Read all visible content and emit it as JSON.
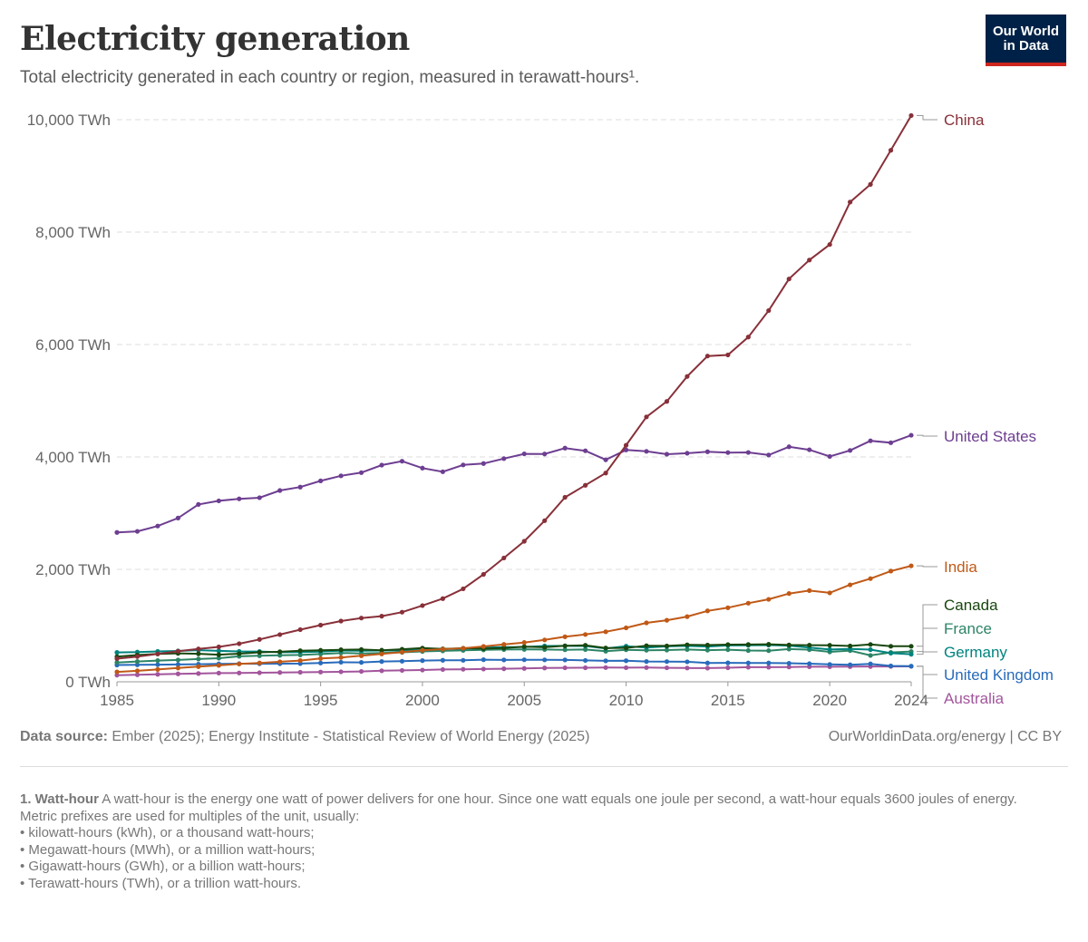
{
  "header": {
    "title": "Electricity generation",
    "subtitle": "Total electricity generated in each country or region, measured in terawatt-hours¹.",
    "logo_line1": "Our World",
    "logo_line2": "in Data"
  },
  "footer": {
    "source_label": "Data source:",
    "source_text": " Ember (2025); Energy Institute - Statistical Review of World Energy (2025)",
    "link_text": "OurWorldinData.org/energy | CC BY"
  },
  "footnote": {
    "term": "1. Watt-hour",
    "definition": " A watt-hour is the energy one watt of power delivers for one hour. Since one watt equals one joule per second, a watt-hour equals 3600 joules of energy.",
    "prefix_intro": "Metric prefixes are used for multiples of the unit, usually:",
    "bullets": [
      "• kilowatt-hours (kWh), or a thousand watt-hours;",
      "• Megawatt-hours (MWh), or a million watt-hours;",
      "• Gigawatt-hours (GWh), or a billion watt-hours;",
      "• Terawatt-hours (TWh), or a trillion watt-hours."
    ]
  },
  "chart_data": {
    "type": "line",
    "title": "Electricity generation",
    "ylabel": "TWh",
    "ylim": [
      0,
      10000
    ],
    "xlim": [
      1985,
      2024
    ],
    "y_ticks": [
      0,
      2000,
      4000,
      6000,
      8000,
      10000
    ],
    "y_tick_labels": [
      "0 TWh",
      "2,000 TWh",
      "4,000 TWh",
      "6,000 TWh",
      "8,000 TWh",
      "10,000 TWh"
    ],
    "x_ticks": [
      1985,
      1990,
      1995,
      2000,
      2005,
      2010,
      2015,
      2020,
      2024
    ],
    "x_tick_labels": [
      "1985",
      "1990",
      "1995",
      "2000",
      "2005",
      "2010",
      "2015",
      "2020",
      "2024"
    ],
    "grid": true,
    "legend": "right-end labels",
    "x": [
      1985,
      1986,
      1987,
      1988,
      1989,
      1990,
      1991,
      1992,
      1993,
      1994,
      1995,
      1996,
      1997,
      1998,
      1999,
      2000,
      2001,
      2002,
      2003,
      2004,
      2005,
      2006,
      2007,
      2008,
      2009,
      2010,
      2011,
      2012,
      2013,
      2014,
      2015,
      2016,
      2017,
      2018,
      2019,
      2020,
      2021,
      2022,
      2023,
      2024
    ],
    "series": [
      {
        "name": "China",
        "color": "#883039",
        "values": [
          411,
          449,
          497,
          545,
          585,
          621,
          678,
          754,
          840,
          928,
          1008,
          1081,
          1134,
          1167,
          1239,
          1356,
          1480,
          1654,
          1911,
          2203,
          2500,
          2866,
          3282,
          3496,
          3714,
          4208,
          4713,
          4988,
          5432,
          5795,
          5815,
          6133,
          6604,
          7166,
          7503,
          7779,
          8534,
          8849,
          9456,
          10073
        ]
      },
      {
        "name": "United States",
        "color": "#6d3e91",
        "values": [
          2657,
          2676,
          2771,
          2913,
          3155,
          3219,
          3255,
          3275,
          3403,
          3464,
          3575,
          3664,
          3721,
          3855,
          3924,
          3802,
          3737,
          3858,
          3883,
          3971,
          4055,
          4053,
          4157,
          4110,
          3950,
          4125,
          4100,
          4048,
          4066,
          4093,
          4078,
          4080,
          4034,
          4181,
          4128,
          4009,
          4116,
          4287,
          4253,
          4386
        ]
      },
      {
        "name": "India",
        "color": "#c05917",
        "values": [
          176,
          195,
          220,
          245,
          270,
          292,
          317,
          335,
          356,
          378,
          414,
          433,
          463,
          495,
          529,
          560,
          581,
          596,
          629,
          665,
          699,
          745,
          801,
          842,
          890,
          960,
          1048,
          1095,
          1159,
          1262,
          1317,
          1398,
          1467,
          1570,
          1623,
          1582,
          1725,
          1836,
          1970,
          2063
        ]
      },
      {
        "name": "Canada",
        "color": "#18470f",
        "values": [
          446,
          476,
          496,
          506,
          498,
          482,
          500,
          524,
          534,
          553,
          560,
          570,
          574,
          562,
          579,
          600,
          585,
          598,
          590,
          601,
          626,
          614,
          640,
          650,
          602,
          603,
          642,
          638,
          658,
          653,
          662,
          663,
          667,
          655,
          651,
          650,
          637,
          664,
          632,
          632
        ]
      },
      {
        "name": "France",
        "color": "#2c8465",
        "values": [
          344,
          361,
          378,
          388,
          405,
          420,
          453,
          463,
          472,
          477,
          493,
          513,
          505,
          511,
          524,
          540,
          550,
          559,
          567,
          574,
          576,
          575,
          570,
          575,
          543,
          570,
          562,
          564,
          574,
          563,
          571,
          556,
          554,
          582,
          571,
          532,
          555,
          469,
          522,
          539
        ]
      },
      {
        "name": "Germany",
        "color": "#00847e",
        "values": [
          522,
          528,
          540,
          549,
          563,
          550,
          540,
          538,
          526,
          528,
          537,
          555,
          552,
          557,
          556,
          577,
          586,
          587,
          608,
          617,
          620,
          637,
          638,
          637,
          593,
          633,
          609,
          630,
          638,
          627,
          647,
          649,
          653,
          643,
          609,
          574,
          584,
          572,
          510,
          490
        ]
      },
      {
        "name": "United Kingdom",
        "color": "#286bbb",
        "values": [
          298,
          302,
          305,
          308,
          313,
          319,
          322,
          321,
          323,
          325,
          334,
          348,
          345,
          361,
          366,
          377,
          383,
          382,
          393,
          389,
          392,
          390,
          389,
          380,
          373,
          375,
          361,
          360,
          356,
          335,
          337,
          336,
          335,
          330,
          322,
          309,
          303,
          319,
          283,
          278
        ]
      },
      {
        "name": "Australia",
        "color": "#a2559c",
        "values": [
          118,
          125,
          133,
          141,
          147,
          155,
          157,
          161,
          165,
          169,
          173,
          178,
          184,
          196,
          203,
          209,
          219,
          223,
          227,
          232,
          238,
          246,
          249,
          250,
          253,
          251,
          253,
          249,
          245,
          244,
          250,
          259,
          260,
          263,
          267,
          267,
          269,
          272,
          273,
          275
        ]
      }
    ]
  }
}
